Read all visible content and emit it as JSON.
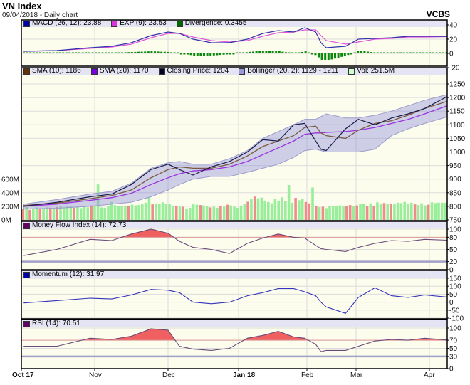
{
  "header": {
    "title": "VN Index",
    "subtitle": "09/04/2018 - Daily chart",
    "brand": "VCBS"
  },
  "colors": {
    "panel_bg": "#fdfdee",
    "legend_bg": "#e4e4f4",
    "up_volume": "#99ee99",
    "down_volume": "#ee8c8c",
    "overbought_fill": "#f06060"
  },
  "legends": {
    "macd": [
      {
        "label": "MACD (26, 12): 23.88",
        "color": "#0000aa"
      },
      {
        "label": "EXP (9): 23.53",
        "color": "#dd33dd"
      },
      {
        "label": "Divergence: 0.3455",
        "color": "#006600"
      }
    ],
    "price": [
      {
        "label": "SMA (10): 1186",
        "color": "#663300"
      },
      {
        "label": "SMA (20): 1170",
        "color": "#7700dd"
      },
      {
        "label": "Closing Price: 1204",
        "color": "#000022"
      },
      {
        "label": "Bollinger (20, 2): 1129 - 1211",
        "color": "#9999dd"
      },
      {
        "label": "Vol: 251.5M",
        "color": "#ccffcc"
      }
    ],
    "mfi": [
      {
        "label": "Money Flow Index (14): 72.73",
        "color": "#660066"
      }
    ],
    "momentum": [
      {
        "label": "Momentum (12): 31.97",
        "color": "#0000aa"
      }
    ],
    "rsi": [
      {
        "label": "RSI (14): 70.51",
        "color": "#660066"
      }
    ]
  },
  "chart_data": {
    "type": "line",
    "x_axis": {
      "ticks": [
        {
          "label": "Oct 17",
          "bold": true
        },
        {
          "label": "Nov"
        },
        {
          "label": "Dec"
        },
        {
          "label": "Jan 18",
          "bold": true
        },
        {
          "label": "Feb"
        },
        {
          "label": "Mar"
        },
        {
          "label": "Apr"
        }
      ]
    },
    "dates": [
      "2017-10-02",
      "2017-10-16",
      "2017-10-30",
      "2017-11-08",
      "2017-11-16",
      "2017-11-24",
      "2017-12-01",
      "2017-12-06",
      "2017-12-12",
      "2017-12-20",
      "2017-12-28",
      "2018-01-05",
      "2018-01-12",
      "2018-01-19",
      "2018-01-26",
      "2018-01-31",
      "2018-02-06",
      "2018-02-09",
      "2018-02-12",
      "2018-02-23",
      "2018-03-02",
      "2018-03-09",
      "2018-03-16",
      "2018-03-23",
      "2018-03-30",
      "2018-04-09"
    ],
    "price": {
      "y_ticks": [
        1250,
        1200,
        1150,
        1100,
        1050,
        1000,
        950,
        900,
        850,
        800,
        750
      ],
      "close": [
        800,
        815,
        835,
        845,
        880,
        935,
        955,
        935,
        915,
        945,
        965,
        1000,
        1045,
        1040,
        1100,
        1105,
        1040,
        1010,
        1005,
        1085,
        1120,
        1100,
        1125,
        1140,
        1160,
        1204
      ],
      "sma10": [
        803,
        812,
        828,
        840,
        860,
        905,
        935,
        945,
        940,
        940,
        955,
        985,
        1020,
        1040,
        1060,
        1090,
        1095,
        1070,
        1060,
        1050,
        1080,
        1105,
        1115,
        1135,
        1160,
        1186
      ],
      "sma20": [
        800,
        808,
        822,
        832,
        848,
        880,
        905,
        920,
        930,
        935,
        945,
        965,
        990,
        1015,
        1040,
        1065,
        1070,
        1070,
        1072,
        1075,
        1080,
        1090,
        1105,
        1120,
        1140,
        1170
      ],
      "bollinger_upper": [
        808,
        825,
        845,
        855,
        885,
        940,
        960,
        965,
        955,
        955,
        975,
        1005,
        1050,
        1075,
        1100,
        1120,
        1120,
        1130,
        1140,
        1125,
        1125,
        1135,
        1150,
        1170,
        1190,
        1211
      ],
      "bollinger_lower": [
        790,
        793,
        800,
        808,
        815,
        835,
        860,
        880,
        900,
        910,
        910,
        925,
        940,
        955,
        980,
        1005,
        1010,
        1005,
        1000,
        1000,
        1000,
        1010,
        1060,
        1085,
        1105,
        1129
      ]
    },
    "volume": {
      "y_ticks": [
        {
          "v": 600,
          "label": "600M"
        },
        {
          "v": 400,
          "label": "400M"
        },
        {
          "v": 200,
          "label": "200M"
        },
        {
          "v": 0,
          "label": "0M"
        }
      ],
      "values_m": [
        160,
        190,
        150,
        170,
        185,
        170,
        175,
        185,
        180,
        175,
        190,
        205,
        185,
        200,
        210,
        180,
        190,
        175,
        200,
        185,
        215,
        205,
        525,
        185,
        180,
        200,
        265,
        220,
        200,
        205,
        210,
        205,
        225,
        215,
        220,
        230,
        255,
        335,
        230,
        245,
        240,
        260,
        240,
        230,
        205,
        210,
        195,
        195,
        165,
        180,
        230,
        225,
        220,
        215,
        200,
        185,
        195,
        180,
        205,
        195,
        225,
        215,
        195,
        180,
        210,
        235,
        270,
        310,
        345,
        320,
        330,
        285,
        265,
        245,
        305,
        285,
        335,
        275,
        515,
        255,
        325,
        290,
        315,
        265,
        245,
        480,
        210,
        190,
        195,
        175,
        200,
        200,
        205,
        215,
        210,
        205,
        220,
        210,
        215,
        240,
        235,
        210,
        245,
        205,
        260,
        230,
        250,
        240,
        235,
        230,
        255,
        250,
        265,
        240,
        255,
        230,
        220,
        245,
        215,
        225,
        260,
        250,
        255,
        255,
        251.5
      ],
      "up": [
        0,
        1,
        0,
        1,
        1,
        0,
        1,
        1,
        0,
        1,
        0,
        1,
        1,
        1,
        1,
        0,
        1,
        1,
        1,
        1,
        0,
        1,
        1,
        1,
        1,
        1,
        1,
        1,
        1,
        1,
        1,
        0,
        1,
        1,
        1,
        1,
        1,
        1,
        0,
        1,
        1,
        1,
        1,
        1,
        1,
        0,
        1,
        0,
        1,
        1,
        1,
        1,
        0,
        1,
        1,
        0,
        1,
        1,
        0,
        1,
        0,
        1,
        1,
        1,
        1,
        1,
        0,
        1,
        0,
        1,
        1,
        1,
        1,
        1,
        1,
        1,
        1,
        1,
        1,
        1,
        0,
        1,
        1,
        0,
        0,
        1,
        0,
        1,
        0,
        1,
        1,
        1,
        1,
        1,
        1,
        0,
        0,
        1,
        0,
        1,
        1,
        0,
        1,
        0,
        1,
        1,
        0,
        1,
        0,
        1,
        1,
        1,
        1,
        1,
        1,
        0,
        1,
        1,
        1,
        0,
        1,
        1,
        1,
        1,
        1
      ]
    },
    "macd": {
      "y_ticks": [
        40,
        20,
        0,
        -20
      ],
      "macd": [
        3,
        4,
        8,
        10,
        15,
        25,
        30,
        28,
        20,
        15,
        15,
        20,
        28,
        32,
        30,
        36,
        30,
        15,
        8,
        10,
        20,
        21,
        22,
        24,
        24,
        23.88
      ],
      "signal": [
        3,
        4,
        7,
        9,
        13,
        22,
        28,
        28,
        23,
        18,
        16,
        18,
        24,
        29,
        30,
        33,
        33,
        25,
        18,
        13,
        16,
        20,
        21,
        23,
        23,
        23.53
      ],
      "divergence": [
        0,
        0,
        1,
        1,
        2,
        3,
        2,
        0,
        -3,
        -3,
        -1,
        2,
        4,
        3,
        0,
        3,
        -3,
        -10,
        -10,
        -3,
        4,
        1,
        1,
        1,
        1,
        0.3455
      ]
    },
    "mfi": {
      "y_ticks": [
        100,
        80,
        50,
        20,
        0
      ],
      "overbought": 80,
      "oversold": 20,
      "values": [
        35,
        50,
        75,
        72,
        88,
        100,
        90,
        70,
        55,
        50,
        40,
        65,
        78,
        88,
        80,
        78,
        60,
        52,
        50,
        45,
        55,
        65,
        72,
        70,
        75,
        72.73
      ]
    },
    "momentum": {
      "y_ticks": [
        150,
        100,
        50,
        0,
        -50,
        -100
      ],
      "values": [
        -5,
        10,
        25,
        20,
        45,
        80,
        75,
        60,
        0,
        -10,
        0,
        40,
        60,
        85,
        85,
        65,
        40,
        0,
        -30,
        -70,
        30,
        90,
        40,
        30,
        45,
        31.97
      ]
    },
    "rsi": {
      "y_ticks": [
        100,
        70,
        50,
        30,
        0
      ],
      "overbought": 70,
      "oversold": 30,
      "values": [
        55,
        55,
        75,
        72,
        80,
        98,
        95,
        55,
        48,
        45,
        50,
        75,
        82,
        92,
        78,
        75,
        60,
        42,
        45,
        45,
        55,
        68,
        72,
        70,
        75,
        70.51
      ]
    }
  }
}
